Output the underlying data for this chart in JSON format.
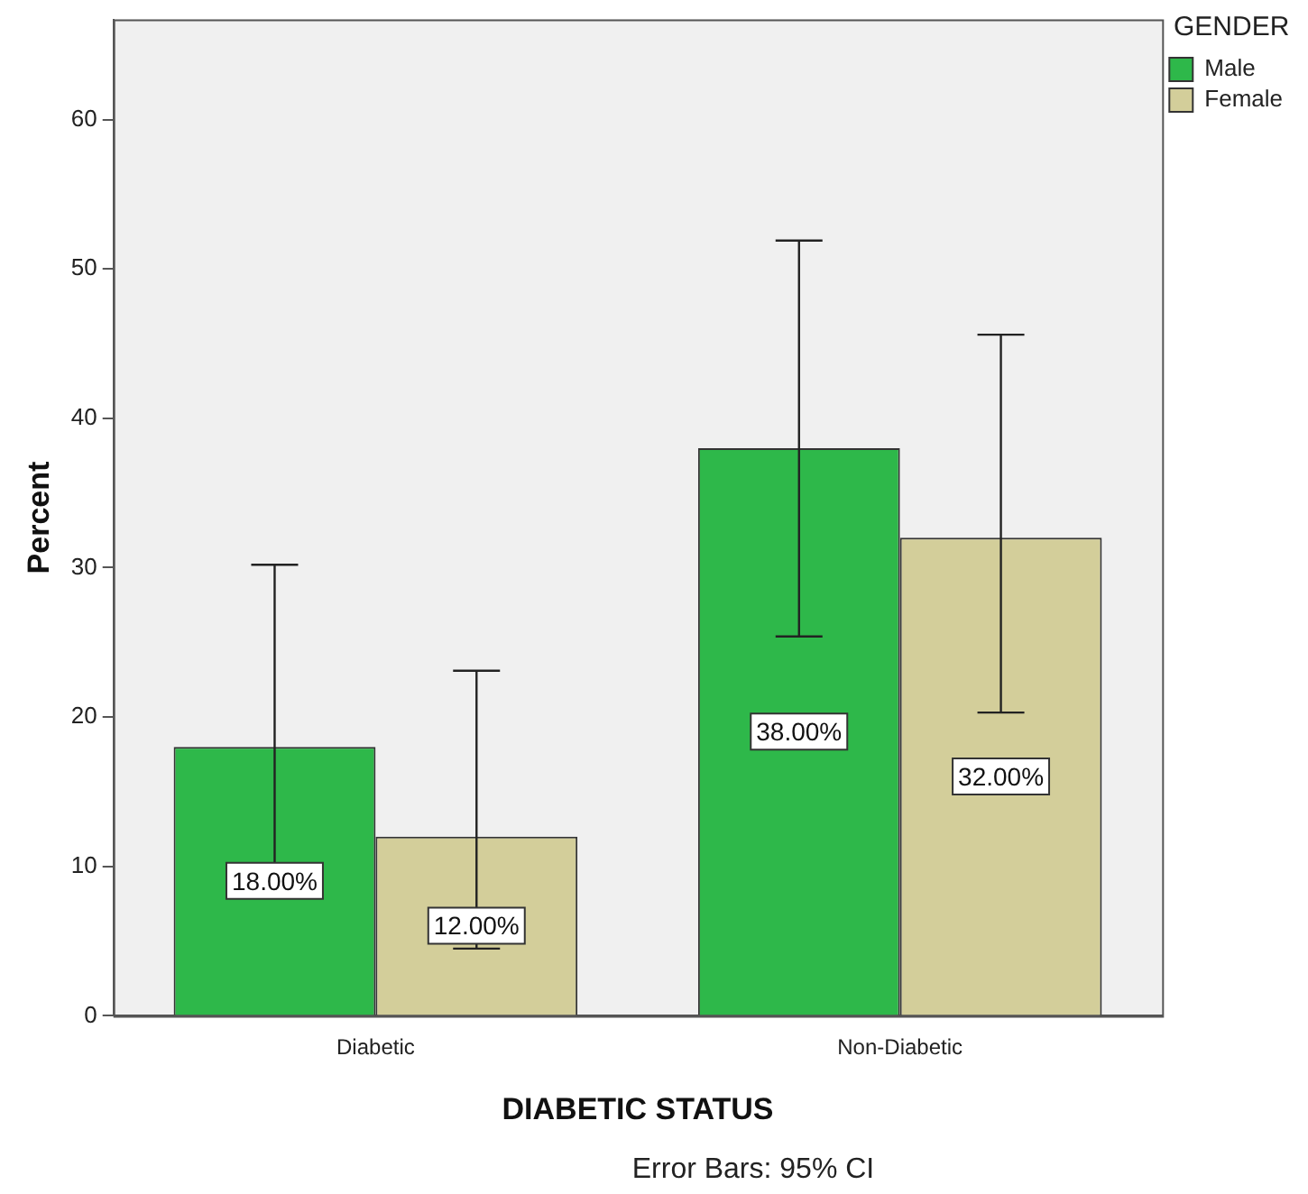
{
  "chart_data": {
    "type": "bar",
    "xlabel": "DIABETIC STATUS",
    "ylabel": "Percent",
    "legend_title": "GENDER",
    "categories": [
      "Diabetic",
      "Non-Diabetic"
    ],
    "series": [
      {
        "name": "Male",
        "color": "#2eb84a",
        "values": [
          18,
          38
        ],
        "errors": [
          [
            8,
            30.2
          ],
          [
            25.4,
            51.9
          ]
        ],
        "value_labels": [
          "18.00%",
          "38.00%"
        ]
      },
      {
        "name": "Female",
        "color": "#d3ce9a",
        "values": [
          12,
          32
        ],
        "errors": [
          [
            4.5,
            23.1
          ],
          [
            20.3,
            45.6
          ]
        ],
        "value_labels": [
          "12.00%",
          "32.00%"
        ]
      }
    ],
    "ylim": [
      0,
      66.7
    ],
    "yticks": [
      0,
      10,
      20,
      30,
      40,
      50,
      60
    ],
    "grid": false,
    "legend": "top right",
    "annotations": [
      "Error Bars: 95% CI"
    ]
  }
}
